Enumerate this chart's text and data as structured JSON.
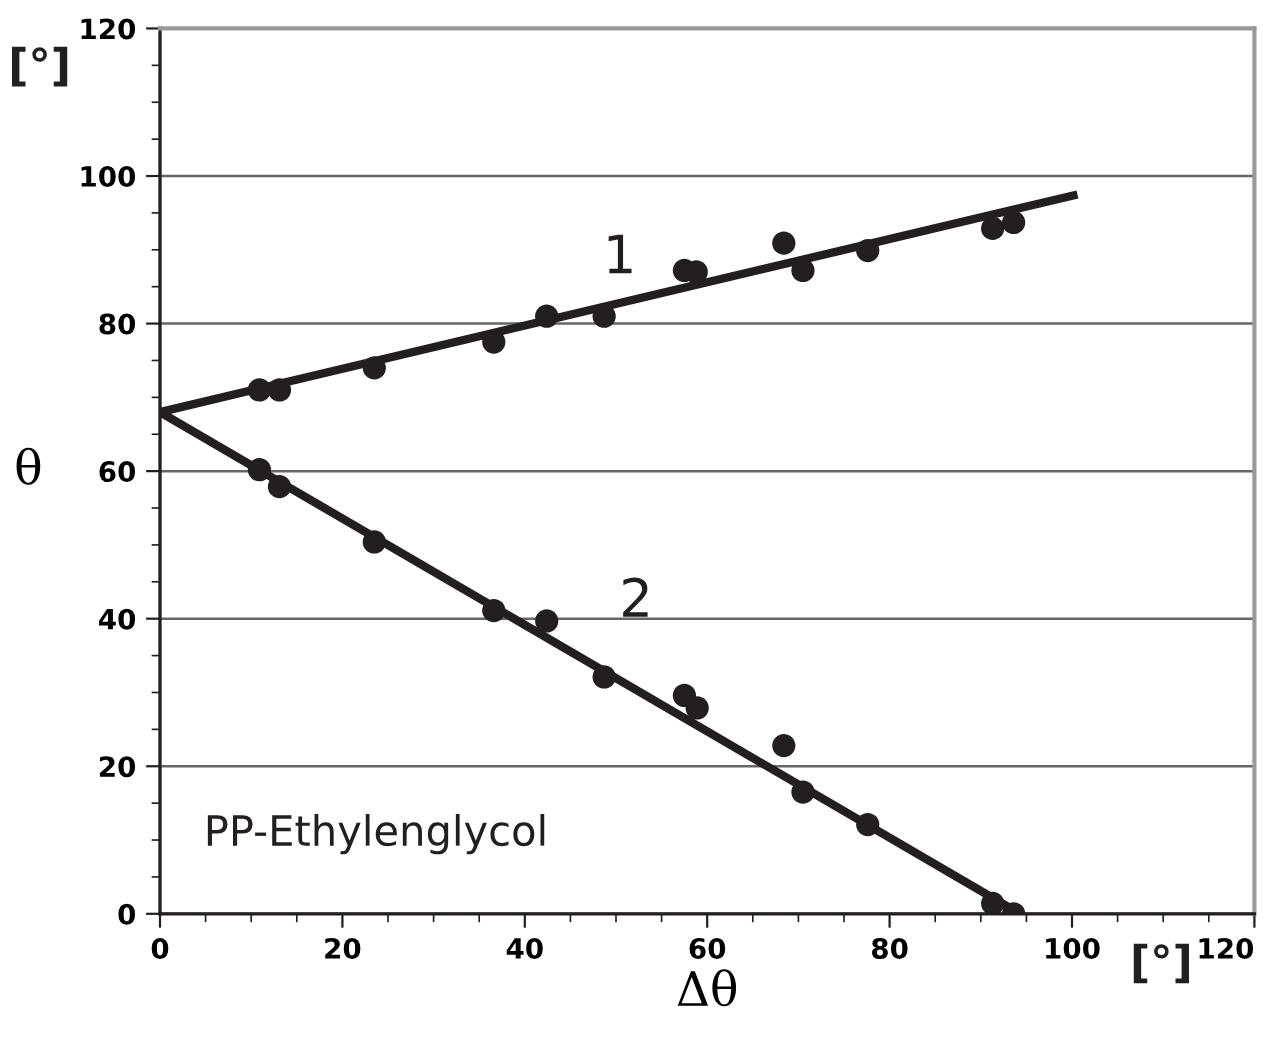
{
  "chart_data": {
    "type": "scatter",
    "xlabel": "Δθ",
    "ylabel": "θ",
    "xlim": [
      0,
      120
    ],
    "ylim": [
      0,
      120
    ],
    "xticks": [
      0,
      20,
      40,
      60,
      80,
      100,
      120
    ],
    "yticks": [
      0,
      20,
      40,
      60,
      80,
      100,
      120
    ],
    "grid": "y",
    "legend": false,
    "annotations": [
      "1",
      "2",
      "PP-Ethylenglycol",
      "[°]",
      "[°]"
    ],
    "series": [
      {
        "marker": "circle",
        "color": "#231f20",
        "x": [
          10.9,
          13.1,
          23.5,
          36.6,
          42.4,
          48.7,
          57.5,
          58.8,
          68.4,
          70.5,
          77.6,
          91.3,
          93.6
        ],
        "values": [
          71,
          71,
          74,
          77.5,
          81,
          81,
          87.2,
          87,
          90.9,
          87.2,
          89.9,
          92.9,
          93.7
        ]
      },
      {
        "marker": "circle",
        "color": "#231f20",
        "x": [
          10.9,
          13.1,
          23.5,
          36.6,
          42.4,
          48.7,
          57.5,
          58.9,
          68.4,
          70.5,
          77.6,
          91.3,
          93.6
        ],
        "values": [
          60.2,
          57.9,
          50.4,
          41.1,
          39.7,
          32.1,
          29.6,
          27.9,
          22.8,
          16.5,
          12.1,
          1.4,
          0
        ]
      },
      {
        "type": "line",
        "marker": "none",
        "color": "#231f20",
        "x": [
          0,
          100.6
        ],
        "values": [
          68,
          97.5
        ]
      },
      {
        "type": "line",
        "marker": "none",
        "color": "#231f20",
        "x": [
          0,
          94.3
        ],
        "values": [
          68,
          0
        ]
      }
    ]
  }
}
